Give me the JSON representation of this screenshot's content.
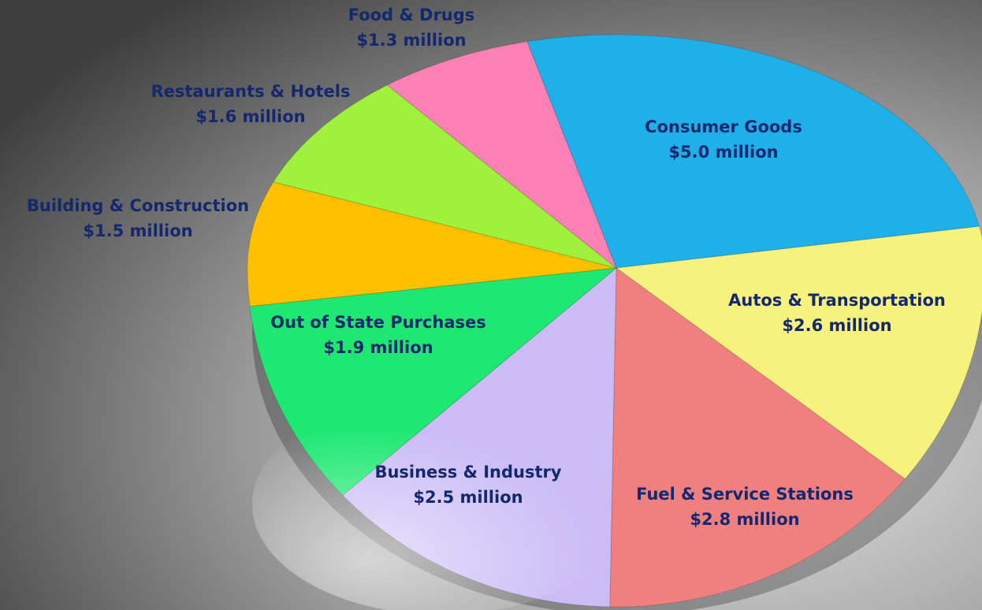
{
  "chart_data": {
    "type": "pie",
    "categories": [
      "Consumer Goods",
      "Autos & Transportation",
      "Fuel & Service Stations",
      "Business & Industry",
      "Out of State Purchases",
      "Building & Construction",
      "Restaurants & Hotels",
      "Food & Drugs"
    ],
    "values": [
      5.0,
      2.6,
      2.8,
      2.5,
      1.9,
      1.5,
      1.6,
      1.3
    ],
    "value_labels": [
      "$5.0 million",
      "$2.6 million",
      "$2.8 million",
      "$2.5 million",
      "$1.9 million",
      "$1.5 million",
      "$1.6 million",
      "$1.3 million"
    ],
    "colors": [
      "#1fb0ea",
      "#f7f27e",
      "#f08080",
      "#cbbcf6",
      "#1ee872",
      "#ffc000",
      "#a0f03e",
      "#ff80b4"
    ]
  }
}
